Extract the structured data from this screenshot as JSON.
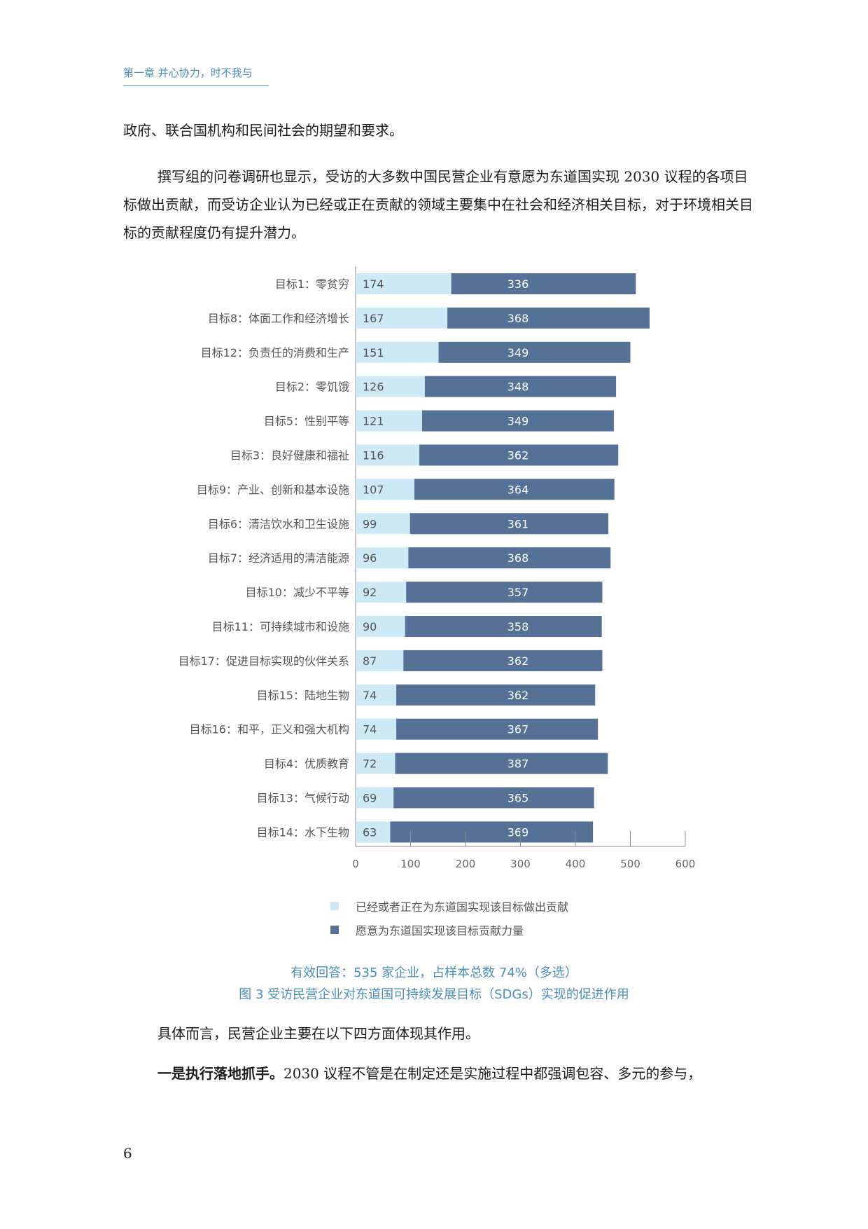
{
  "header": {
    "chapter": "第一章  并心协力，时不我与"
  },
  "paragraphs": {
    "p1": "政府、联合国机构和民间社会的期望和要求。",
    "p2": "撰写组的问卷调研也显示，受访的大多数中国民营企业有意愿为东道国实现 2030 议程的各项目标做出贡献，而受访企业认为已经或正在贡献的领域主要集中在社会和经济相关目标，对于环境相关目标的贡献程度仍有提升潜力。",
    "p3": "具体而言，民营企业主要在以下四方面体现其作用。",
    "p4_bold": "一是执行落地抓手。",
    "p4_rest": "2030 议程不管是在制定还是实施过程中都强调包容、多元的参与，"
  },
  "chart_data": {
    "type": "bar",
    "orientation": "horizontal",
    "stacked": true,
    "categories": [
      "目标1：零贫穷",
      "目标8：体面工作和经济增长",
      "目标12：负责任的消费和生产",
      "目标2：零饥饿",
      "目标5：性别平等",
      "目标3：良好健康和福祉",
      "目标9：产业、创新和基本设施",
      "目标6：清洁饮水和卫生设施",
      "目标7：经济适用的清洁能源",
      "目标10：减少不平等",
      "目标11：可持续城市和设施",
      "目标17：促进目标实现的伙伴关系",
      "目标15：陆地生物",
      "目标16：和平，正义和强大机构",
      "目标4：优质教育",
      "目标13：气候行动",
      "目标14：水下生物"
    ],
    "series": [
      {
        "name": "已经或者正在为东道国实现该目标做出贡献",
        "color": "#cde9f5",
        "values": [
          174,
          167,
          151,
          126,
          121,
          116,
          107,
          99,
          96,
          92,
          90,
          87,
          74,
          74,
          72,
          69,
          63
        ]
      },
      {
        "name": "愿意为东道国实现该目标贡献力量",
        "color": "#557296",
        "values": [
          336,
          368,
          349,
          348,
          349,
          362,
          364,
          361,
          368,
          357,
          358,
          362,
          362,
          367,
          387,
          365,
          369
        ]
      }
    ],
    "xticks": [
      "0",
      "100",
      "200",
      "300",
      "400",
      "500",
      "600"
    ],
    "xlim": [
      0,
      600
    ],
    "legend_position": "bottom",
    "grid": false
  },
  "caption": {
    "note": "有效回答：535 家企业，占样本总数 74%（多选）",
    "title": "图 3  受访民营企业对东道国可持续发展目标（SDGs）实现的促进作用"
  },
  "page_number": "6"
}
